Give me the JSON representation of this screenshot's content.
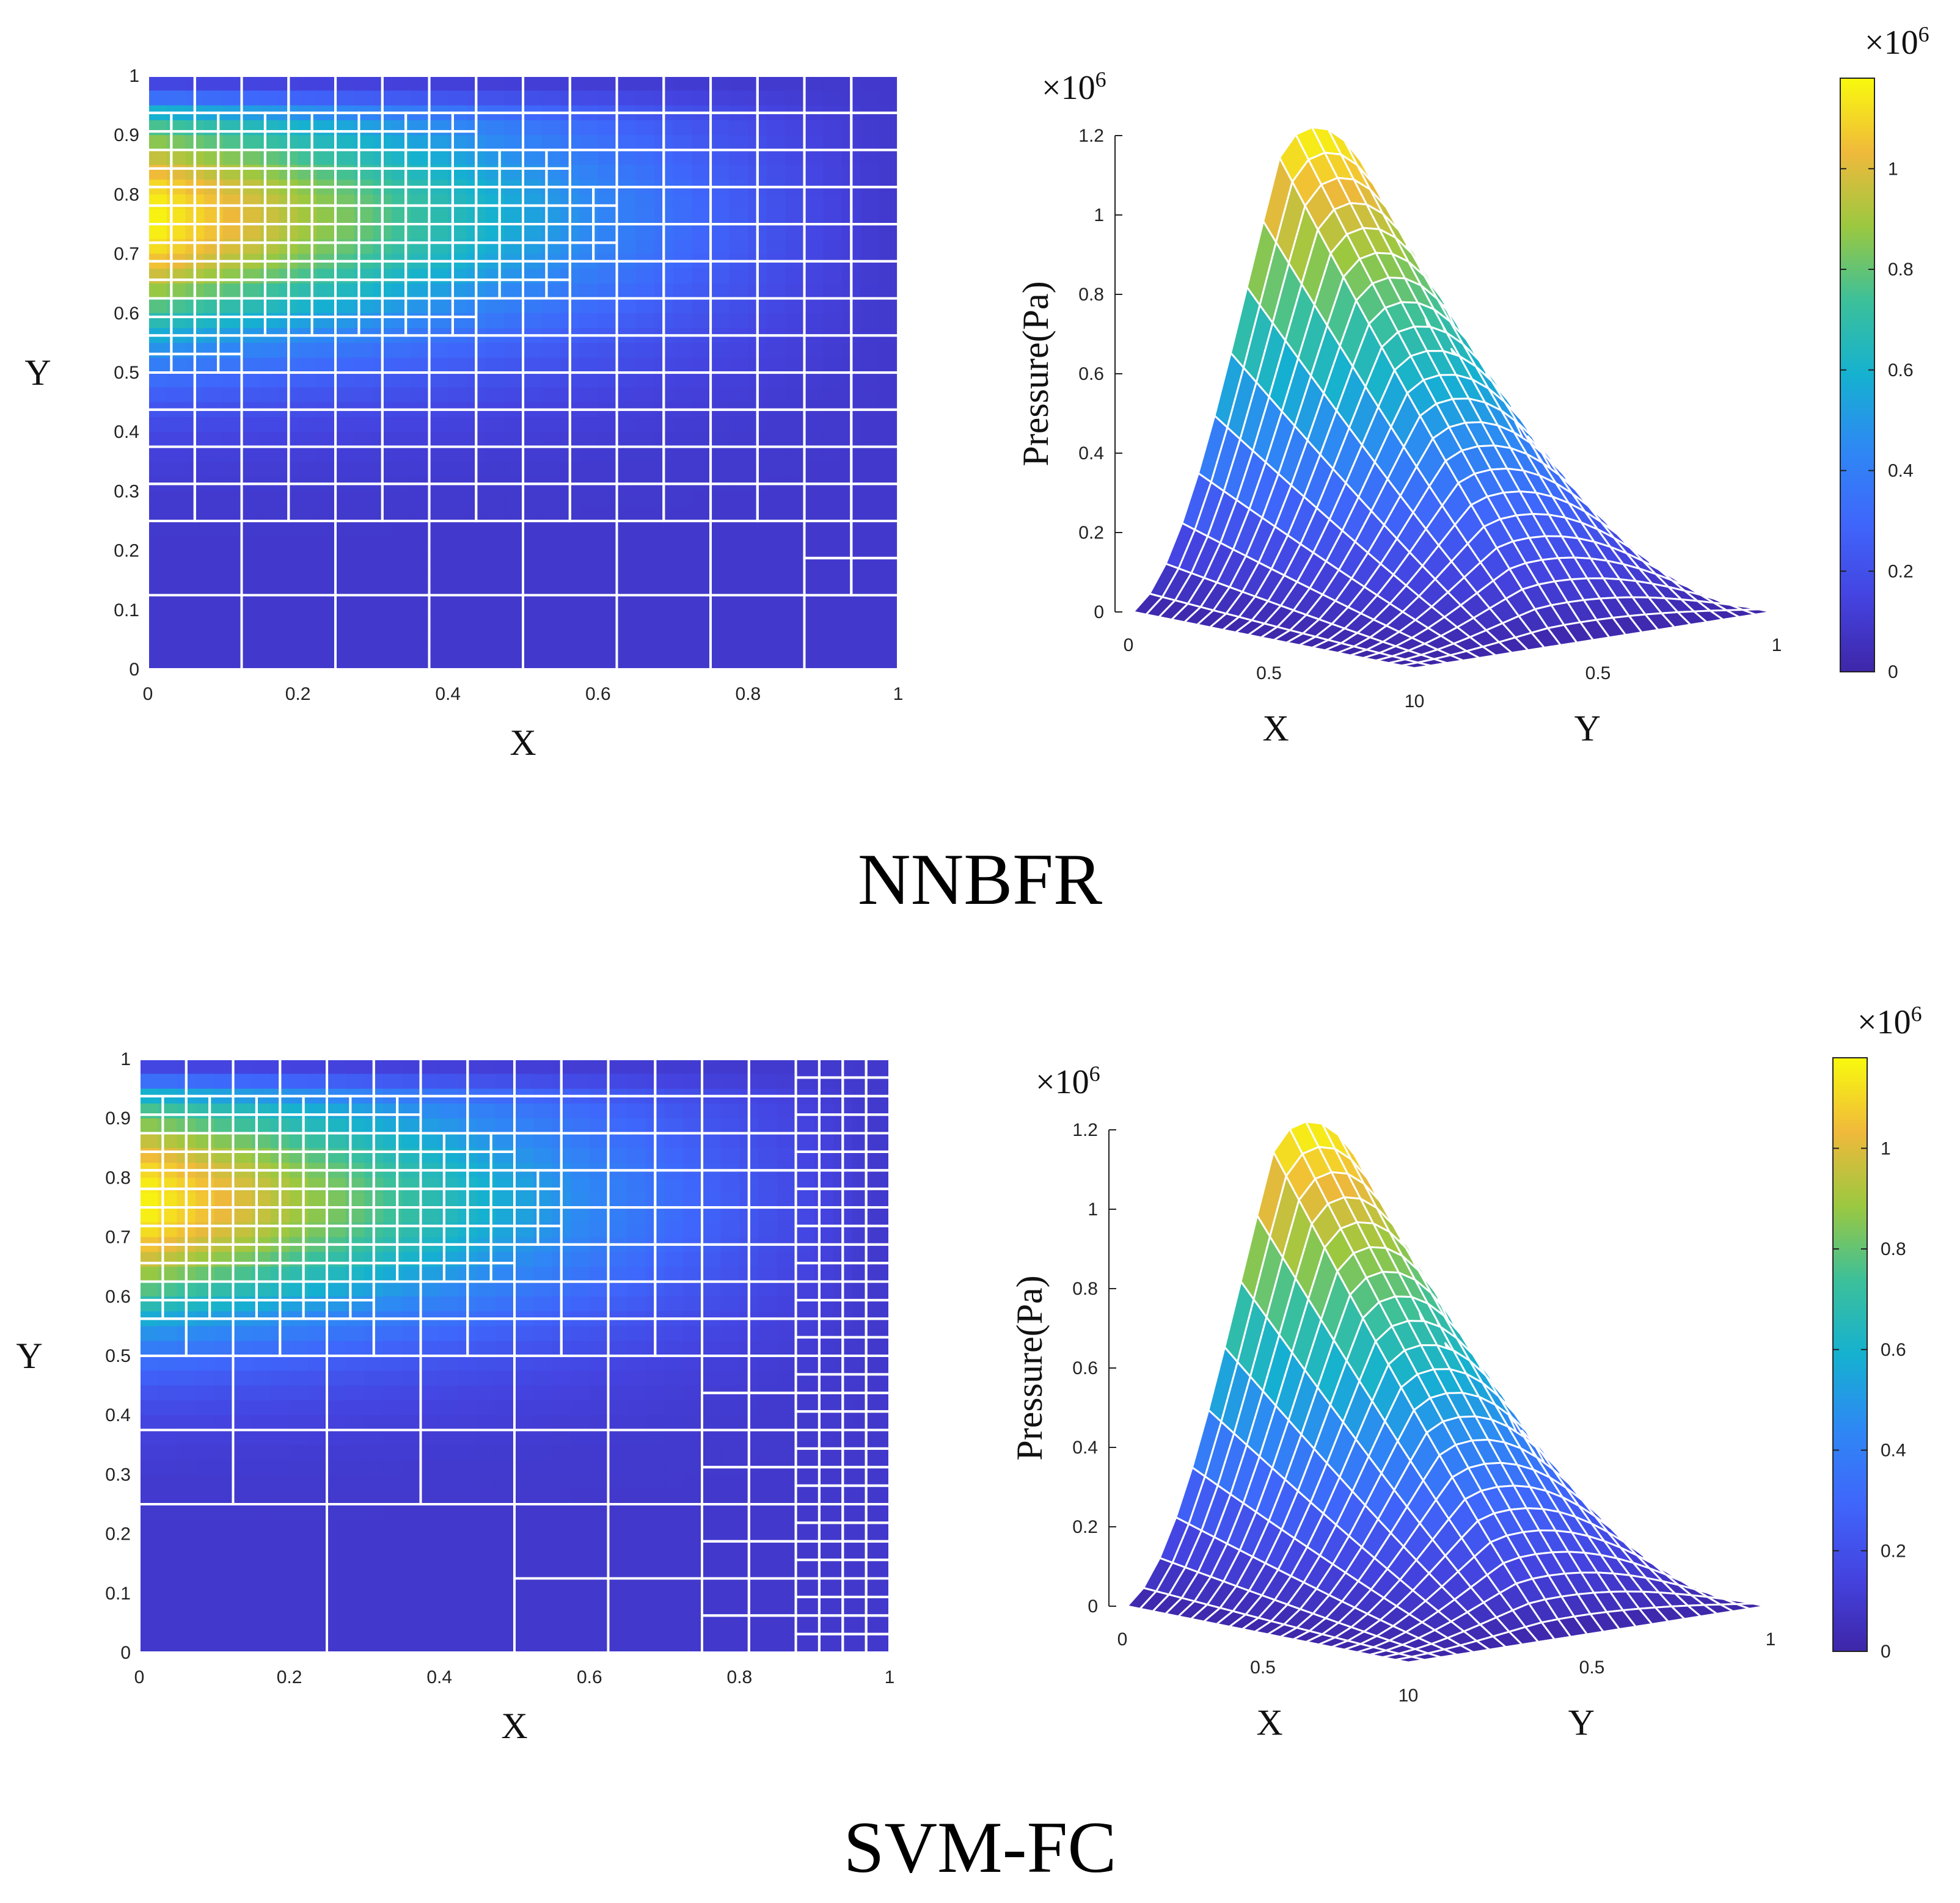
{
  "figure": {
    "panels": [
      {
        "caption": "NNBFR"
      },
      {
        "caption": "SVM-FC"
      }
    ]
  },
  "chart_data": [
    {
      "type": "heatmap",
      "panel": "NNBFR",
      "title": "",
      "xlabel": "X",
      "ylabel": "Y",
      "xlim": [
        0,
        1
      ],
      "ylim": [
        0,
        1
      ],
      "x_ticks": [
        "0",
        "0.2",
        "0.4",
        "0.6",
        "0.8",
        "1"
      ],
      "y_ticks": [
        "0",
        "0.1",
        "0.2",
        "0.3",
        "0.4",
        "0.5",
        "0.6",
        "0.7",
        "0.8",
        "0.9",
        "1"
      ],
      "field": "pressure",
      "peak_location": [
        0.05,
        0.75
      ],
      "grid": "adaptive quadtree mesh, refined near the high-pressure region",
      "colormap": "parula"
    },
    {
      "type": "surface",
      "panel": "NNBFR",
      "zlabel": "Pressure(Pa)",
      "z_exponent_label": "×10",
      "z_exponent_power": "6",
      "zlim": [
        0,
        1200000
      ],
      "z_ticks": [
        "0",
        "0.2",
        "0.4",
        "0.6",
        "0.8",
        "1",
        "1.2"
      ],
      "x_label": "X",
      "y_label": "Y",
      "x_ticks": [
        "0",
        "0.5",
        "1"
      ],
      "y_ticks": [
        "0",
        "0.5",
        "1"
      ],
      "peak_value": 1200000,
      "colorbar": {
        "exponent_label": "×10",
        "exponent_power": "6",
        "ticks": [
          "0",
          "0.2",
          "0.4",
          "0.6",
          "0.8",
          "1"
        ],
        "range": [
          0,
          1180000
        ]
      }
    },
    {
      "type": "heatmap",
      "panel": "SVM-FC",
      "title": "",
      "xlabel": "X",
      "ylabel": "Y",
      "xlim": [
        0,
        1
      ],
      "ylim": [
        0,
        1
      ],
      "x_ticks": [
        "0",
        "0.2",
        "0.4",
        "0.6",
        "0.8",
        "1"
      ],
      "y_ticks": [
        "0",
        "0.1",
        "0.2",
        "0.3",
        "0.4",
        "0.5",
        "0.6",
        "0.7",
        "0.8",
        "0.9",
        "1"
      ],
      "field": "pressure",
      "peak_location": [
        0.05,
        0.75
      ],
      "grid": "adaptive quadtree mesh, refined near the high-pressure region",
      "colormap": "parula"
    },
    {
      "type": "surface",
      "panel": "SVM-FC",
      "zlabel": "Pressure(Pa)",
      "z_exponent_label": "×10",
      "z_exponent_power": "6",
      "zlim": [
        0,
        1200000
      ],
      "z_ticks": [
        "0",
        "0.2",
        "0.4",
        "0.6",
        "0.8",
        "1",
        "1.2"
      ],
      "x_label": "X",
      "y_label": "Y",
      "x_ticks": [
        "0",
        "0.5",
        "1"
      ],
      "y_ticks": [
        "0",
        "0.5",
        "1"
      ],
      "peak_value": 1200000,
      "colorbar": {
        "exponent_label": "×10",
        "exponent_power": "6",
        "ticks": [
          "0",
          "0.2",
          "0.4",
          "0.6",
          "0.8",
          "1"
        ],
        "range": [
          0,
          1180000
        ]
      }
    }
  ]
}
